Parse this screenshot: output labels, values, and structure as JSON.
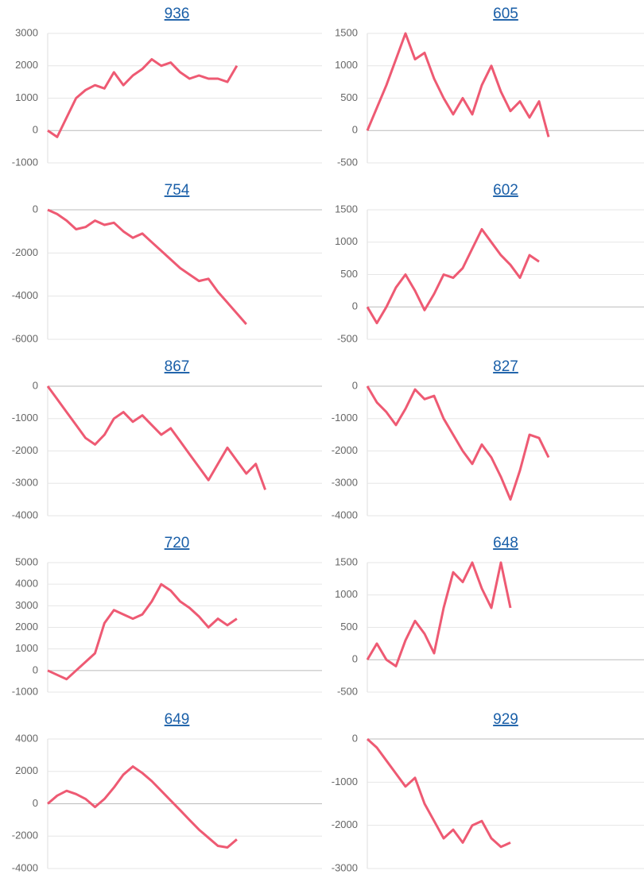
{
  "chart_data": [
    {
      "type": "line",
      "title": "936",
      "color": "#ee5a73",
      "grid": true,
      "ylim": [
        -1000,
        3000
      ],
      "yticks": [
        -1000,
        0,
        1000,
        2000,
        3000
      ],
      "values": [
        0,
        -200,
        400,
        1000,
        1250,
        1400,
        1300,
        1800,
        1400,
        1700,
        1900,
        2200,
        2000,
        2100,
        1800,
        1600,
        1700,
        1600,
        1600,
        1500,
        2000,
        null,
        null,
        null,
        null,
        null,
        null,
        null,
        null,
        null
      ]
    },
    {
      "type": "line",
      "title": "605",
      "color": "#ee5a73",
      "grid": true,
      "ylim": [
        -500,
        1500
      ],
      "yticks": [
        -500,
        0,
        500,
        1000,
        1500
      ],
      "values": [
        0,
        350,
        700,
        1100,
        1500,
        1100,
        1200,
        800,
        500,
        250,
        500,
        250,
        700,
        1000,
        600,
        300,
        450,
        200,
        450,
        -100,
        null,
        null,
        null,
        null,
        null,
        null,
        null,
        null,
        null,
        null
      ]
    },
    {
      "type": "line",
      "title": "754",
      "color": "#ee5a73",
      "grid": true,
      "ylim": [
        -6000,
        0
      ],
      "yticks": [
        -6000,
        -4000,
        -2000,
        0
      ],
      "values": [
        0,
        -200,
        -500,
        -900,
        -800,
        -500,
        -700,
        -600,
        -1000,
        -1300,
        -1100,
        -1500,
        -1900,
        -2300,
        -2700,
        -3000,
        -3300,
        -3200,
        -3800,
        -4300,
        -4800,
        -5300,
        null,
        null,
        null,
        null,
        null,
        null,
        null,
        null
      ]
    },
    {
      "type": "line",
      "title": "602",
      "color": "#ee5a73",
      "grid": true,
      "ylim": [
        -500,
        1500
      ],
      "yticks": [
        -500,
        0,
        500,
        1000,
        1500
      ],
      "values": [
        0,
        -250,
        0,
        300,
        500,
        250,
        -50,
        200,
        500,
        450,
        600,
        900,
        1200,
        1000,
        800,
        650,
        450,
        800,
        700,
        null,
        null,
        null,
        null,
        null,
        null,
        null,
        null,
        null,
        null,
        null
      ]
    },
    {
      "type": "line",
      "title": "867",
      "color": "#ee5a73",
      "grid": true,
      "ylim": [
        -4000,
        0
      ],
      "yticks": [
        -4000,
        -3000,
        -2000,
        -1000,
        0
      ],
      "values": [
        0,
        -400,
        -800,
        -1200,
        -1600,
        -1800,
        -1500,
        -1000,
        -800,
        -1100,
        -900,
        -1200,
        -1500,
        -1300,
        -1700,
        -2100,
        -2500,
        -2900,
        -2400,
        -1900,
        -2300,
        -2700,
        -2400,
        -3200,
        null,
        null,
        null,
        null,
        null,
        null
      ]
    },
    {
      "type": "line",
      "title": "827",
      "color": "#ee5a73",
      "grid": true,
      "ylim": [
        -4000,
        0
      ],
      "yticks": [
        -4000,
        -3000,
        -2000,
        -1000,
        0
      ],
      "values": [
        0,
        -500,
        -800,
        -1200,
        -700,
        -100,
        -400,
        -300,
        -1000,
        -1500,
        -2000,
        -2400,
        -1800,
        -2200,
        -2800,
        -3500,
        -2600,
        -1500,
        -1600,
        -2200,
        null,
        null,
        null,
        null,
        null,
        null,
        null,
        null,
        null,
        null
      ]
    },
    {
      "type": "line",
      "title": "720",
      "color": "#ee5a73",
      "grid": true,
      "ylim": [
        -1000,
        5000
      ],
      "yticks": [
        -1000,
        0,
        1000,
        2000,
        3000,
        4000,
        5000
      ],
      "values": [
        0,
        -200,
        -400,
        0,
        400,
        800,
        2200,
        2800,
        2600,
        2400,
        2600,
        3200,
        4000,
        3700,
        3200,
        2900,
        2500,
        2000,
        2400,
        2100,
        2400,
        null,
        null,
        null,
        null,
        null,
        null,
        null,
        null,
        null
      ]
    },
    {
      "type": "line",
      "title": "648",
      "color": "#ee5a73",
      "grid": true,
      "ylim": [
        -500,
        1500
      ],
      "yticks": [
        -500,
        0,
        500,
        1000,
        1500
      ],
      "values": [
        0,
        250,
        0,
        -100,
        300,
        600,
        400,
        100,
        800,
        1350,
        1200,
        1500,
        1100,
        800,
        1500,
        800,
        null,
        null,
        null,
        null,
        null,
        null,
        null,
        null,
        null,
        null,
        null,
        null,
        null,
        null
      ]
    },
    {
      "type": "line",
      "title": "649",
      "color": "#ee5a73",
      "grid": true,
      "ylim": [
        -4000,
        4000
      ],
      "yticks": [
        -4000,
        -2000,
        0,
        2000,
        4000
      ],
      "values": [
        0,
        500,
        800,
        600,
        300,
        -200,
        300,
        1000,
        1800,
        2300,
        1900,
        1400,
        800,
        200,
        -400,
        -1000,
        -1600,
        -2100,
        -2600,
        -2700,
        -2200,
        null,
        null,
        null,
        null,
        null,
        null,
        null,
        null,
        null
      ]
    },
    {
      "type": "line",
      "title": "929",
      "color": "#ee5a73",
      "grid": true,
      "ylim": [
        -3000,
        0
      ],
      "yticks": [
        -3000,
        -2000,
        -1000,
        0
      ],
      "values": [
        0,
        -200,
        -500,
        -800,
        -1100,
        -900,
        -1500,
        -1900,
        -2300,
        -2100,
        -2400,
        -2000,
        -1900,
        -2300,
        -2500,
        -2400,
        null,
        null,
        null,
        null,
        null,
        null,
        null,
        null,
        null,
        null,
        null,
        null,
        null,
        null
      ]
    }
  ]
}
